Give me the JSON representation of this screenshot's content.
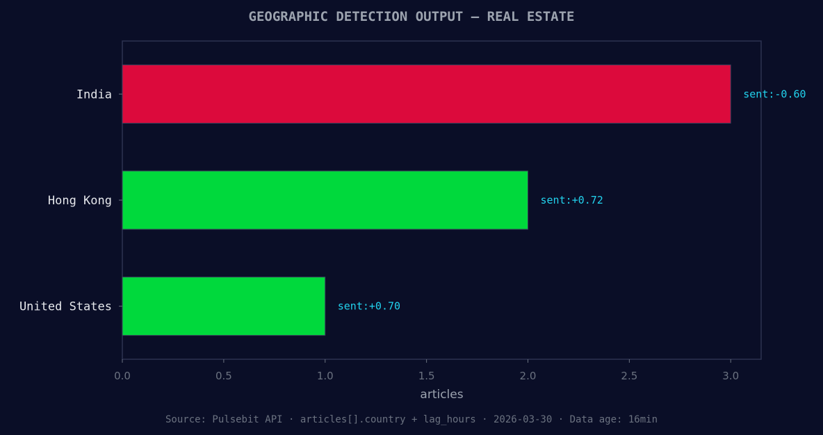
{
  "chart_data": {
    "type": "bar",
    "orientation": "horizontal",
    "title": "GEOGRAPHIC DETECTION OUTPUT — REAL ESTATE",
    "categories": [
      "India",
      "Hong Kong",
      "United States"
    ],
    "values": [
      3,
      2,
      1
    ],
    "bar_labels": [
      "sent:-0.60",
      "sent:+0.72",
      "sent:+0.70"
    ],
    "bar_colors": [
      "#dc0a3c",
      "#00d93c",
      "#00d93c"
    ],
    "xlabel": "articles",
    "ylabel": "",
    "xlim": [
      0,
      3.15
    ],
    "xticks": [
      0,
      0.5,
      1,
      1.5,
      2,
      2.5,
      3
    ],
    "xtick_labels": [
      "0.0",
      "0.5",
      "1.0",
      "1.5",
      "2.0",
      "2.5",
      "3.0"
    ],
    "grid": false,
    "legend": "none"
  },
  "colors": {
    "background": "#0a0e27",
    "axes_frame": "#2d3250",
    "negative": "#dc0a3c",
    "positive": "#00d93c",
    "annotation": "#22d3ee"
  },
  "footer": "Source: Pulsebit API · articles[].country + lag_hours · 2026-03-30 · Data age: 16min"
}
